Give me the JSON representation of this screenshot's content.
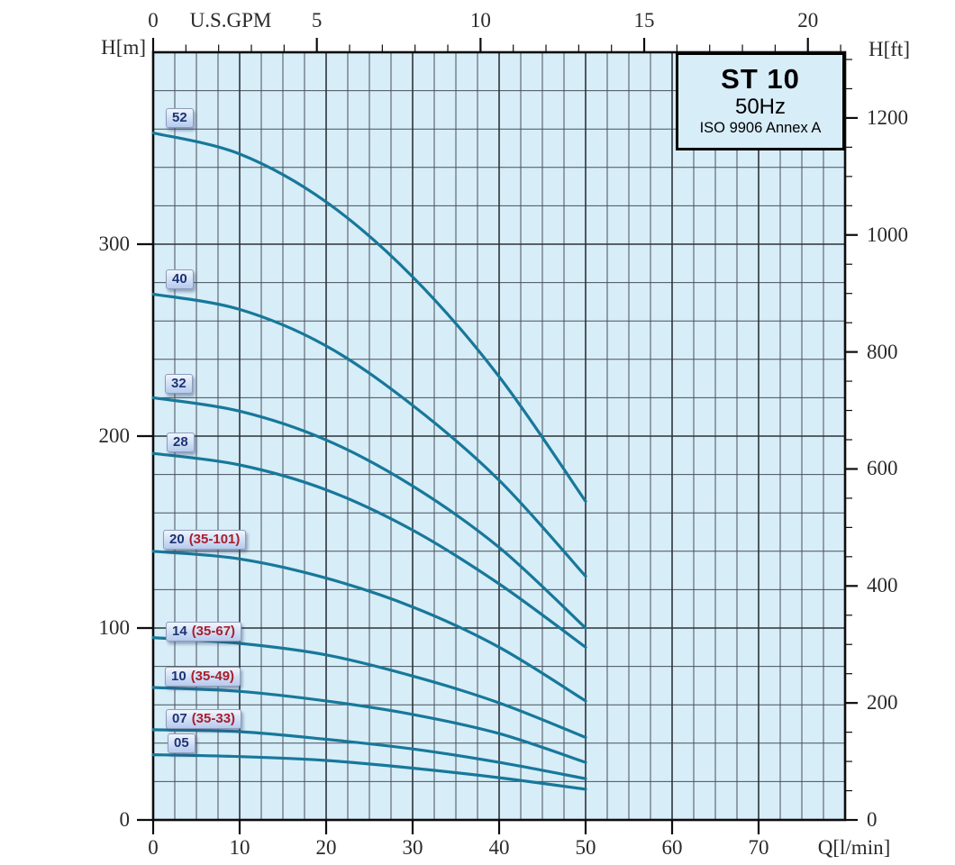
{
  "chart_data": {
    "type": "line",
    "title": "ST 10",
    "subtitle": "50Hz",
    "note": "ISO 9906 Annex A",
    "x_axis_bottom_label": "Q[l/min]",
    "x_axis_top_label": "U.S.GPM",
    "y_axis_left_label": "H[m]",
    "y_axis_right_label": "H[ft]",
    "x": [
      0,
      10,
      20,
      30,
      40,
      50
    ],
    "series": [
      {
        "label": "52",
        "range": "",
        "values": [
          358,
          347,
          322,
          283,
          231,
          166
        ]
      },
      {
        "label": "40",
        "range": "",
        "values": [
          274,
          266,
          247,
          216,
          177,
          127
        ]
      },
      {
        "label": "32",
        "range": "",
        "values": [
          220,
          213,
          198,
          174,
          142,
          100
        ]
      },
      {
        "label": "28",
        "range": "",
        "values": [
          191,
          185,
          172,
          151,
          123,
          90
        ]
      },
      {
        "label": "20",
        "range": "(35-101)",
        "values": [
          140,
          136,
          126,
          111,
          90,
          62
        ]
      },
      {
        "label": "14",
        "range": "(35-67)",
        "values": [
          95,
          92,
          86,
          75,
          61,
          43
        ]
      },
      {
        "label": "10",
        "range": "(35-49)",
        "values": [
          69,
          67,
          62,
          55,
          45,
          30
        ]
      },
      {
        "label": "07",
        "range": "(35-33)",
        "values": [
          47,
          46,
          42,
          37,
          30,
          21.5
        ]
      },
      {
        "label": "05",
        "range": "",
        "values": [
          34,
          33,
          31,
          27,
          22,
          16
        ]
      }
    ],
    "axes": {
      "bottom": {
        "unit": "l/min",
        "ticks": [
          0,
          10,
          20,
          30,
          40,
          50,
          60,
          70
        ],
        "max": 80,
        "minor_step": 2.5
      },
      "top": {
        "unit": "U.S.GPM",
        "ticks": [
          0,
          5,
          10,
          15,
          20
        ],
        "minor_step": 1,
        "lpm_per_gpm": 3.785
      },
      "left": {
        "unit": "m",
        "ticks": [
          0,
          100,
          200,
          300
        ],
        "max": 400,
        "minor_step": 20
      },
      "right": {
        "unit": "ft",
        "ticks": [
          0,
          200,
          400,
          600,
          800,
          1000,
          1200
        ],
        "minor_step": 50,
        "ft_per_m": 3.2808
      }
    },
    "grid": true,
    "colors": {
      "curve": "#17789a",
      "plot_background": "#d7edf8",
      "grid_minor": "#49505a",
      "grid_major": "#2d3339",
      "border": "#0d0d0d",
      "label_navy": "#1d3374",
      "label_red": "#a81e2e"
    }
  }
}
